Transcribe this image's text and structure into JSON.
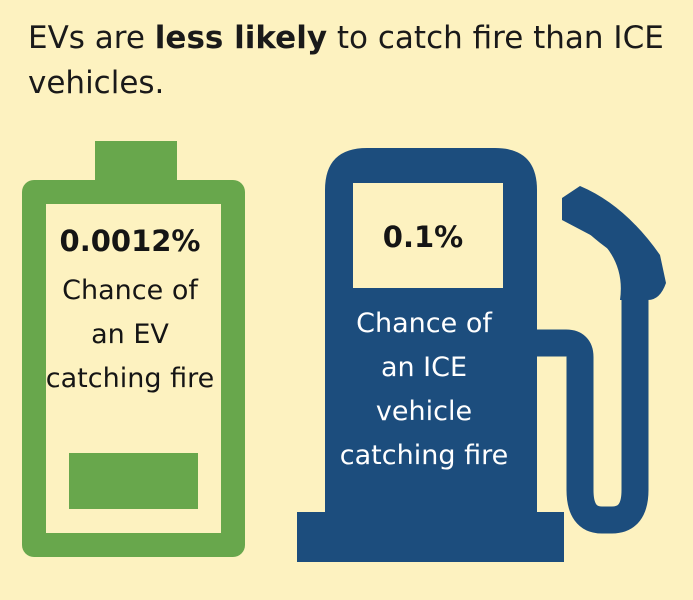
{
  "headline": {
    "part1": "EVs are ",
    "bold": "less likely",
    "part2": " to catch fire than ICE vehicles."
  },
  "ev": {
    "percent": "0.0012%",
    "description": "Chance of an EV catching fire",
    "color": "#68a74c",
    "charge_level": 0.2
  },
  "ice": {
    "percent": "0.1%",
    "description": "Chance of an ICE vehicle catching fire",
    "color": "#1c4d7d"
  },
  "icons": {
    "battery": "battery-icon",
    "fuel_pump": "fuel-pump-icon"
  },
  "colors": {
    "background": "#fdf2c0"
  }
}
